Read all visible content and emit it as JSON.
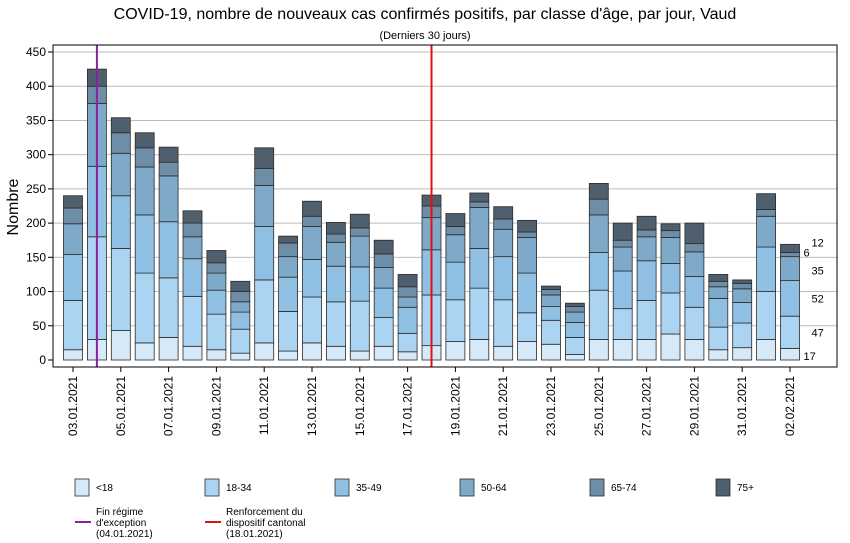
{
  "chart_data": {
    "type": "bar",
    "stacked": true,
    "title": "COVID-19, nombre de nouveaux cas confirmés positifs, par classe d'âge, par jour, Vaud",
    "subtitle": "(Derniers 30 jours)",
    "ylabel": "Nombre",
    "ylim": [
      0,
      450
    ],
    "yticks": [
      0,
      50,
      100,
      150,
      200,
      250,
      300,
      350,
      400,
      450
    ],
    "grid": true,
    "legend_position": "bottom",
    "categories": [
      "03.01.2021",
      "04.01.2021",
      "05.01.2021",
      "06.01.2021",
      "07.01.2021",
      "08.01.2021",
      "09.01.2021",
      "10.01.2021",
      "11.01.2021",
      "12.01.2021",
      "13.01.2021",
      "14.01.2021",
      "15.01.2021",
      "16.01.2021",
      "17.01.2021",
      "18.01.2021",
      "19.01.2021",
      "20.01.2021",
      "21.01.2021",
      "22.01.2021",
      "23.01.2021",
      "24.01.2021",
      "25.01.2021",
      "26.01.2021",
      "27.01.2021",
      "28.01.2021",
      "29.01.2021",
      "30.01.2021",
      "31.01.2021",
      "01.02.2021",
      "02.02.2021"
    ],
    "xtick_labels": [
      "03.01.2021",
      "05.01.2021",
      "07.01.2021",
      "09.01.2021",
      "11.01.2021",
      "13.01.2021",
      "15.01.2021",
      "17.01.2021",
      "19.01.2021",
      "21.01.2021",
      "23.01.2021",
      "25.01.2021",
      "27.01.2021",
      "29.01.2021",
      "31.01.2021",
      "02.02.2021"
    ],
    "series": [
      {
        "name": "<18",
        "color": "#d6e9f8",
        "values": [
          15,
          30,
          43,
          25,
          33,
          20,
          15,
          10,
          25,
          13,
          25,
          20,
          13,
          20,
          12,
          21,
          27,
          30,
          20,
          27,
          23,
          8,
          30,
          30,
          30,
          38,
          30,
          15,
          18,
          30,
          17
        ]
      },
      {
        "name": "18-34",
        "color": "#abd3f2",
        "values": [
          72,
          150,
          120,
          102,
          87,
          73,
          52,
          35,
          92,
          58,
          67,
          65,
          73,
          42,
          27,
          74,
          61,
          75,
          68,
          42,
          35,
          25,
          72,
          45,
          57,
          60,
          47,
          33,
          36,
          70,
          47
        ]
      },
      {
        "name": "35-49",
        "color": "#8fc0e4",
        "values": [
          67,
          103,
          77,
          85,
          82,
          55,
          35,
          25,
          78,
          50,
          55,
          52,
          50,
          43,
          38,
          66,
          55,
          58,
          63,
          58,
          20,
          22,
          55,
          55,
          58,
          43,
          45,
          42,
          30,
          65,
          52
        ]
      },
      {
        "name": "50-64",
        "color": "#7ea9c9",
        "values": [
          45,
          92,
          62,
          70,
          67,
          32,
          25,
          15,
          60,
          30,
          48,
          35,
          45,
          30,
          15,
          47,
          40,
          60,
          40,
          52,
          17,
          15,
          55,
          35,
          35,
          38,
          36,
          17,
          20,
          45,
          35
        ]
      },
      {
        "name": "65-74",
        "color": "#6e8ea8",
        "values": [
          23,
          25,
          30,
          28,
          20,
          20,
          15,
          15,
          25,
          20,
          15,
          12,
          12,
          20,
          15,
          17,
          12,
          8,
          15,
          8,
          8,
          8,
          23,
          10,
          10,
          10,
          12,
          8,
          8,
          10,
          6
        ]
      },
      {
        "name": "75+",
        "color": "#4f5f6d",
        "values": [
          18,
          25,
          22,
          22,
          22,
          18,
          18,
          15,
          30,
          10,
          22,
          17,
          20,
          20,
          18,
          16,
          19,
          13,
          18,
          17,
          5,
          5,
          23,
          25,
          20,
          10,
          30,
          10,
          5,
          23,
          12
        ]
      }
    ],
    "bar_labels": [
      {
        "series": "<18",
        "category": "02.02.2021",
        "text": "17"
      },
      {
        "series": "18-34",
        "category": "02.02.2021",
        "text": "47"
      },
      {
        "series": "35-49",
        "category": "02.02.2021",
        "text": "52"
      },
      {
        "series": "50-64",
        "category": "02.02.2021",
        "text": "35"
      },
      {
        "series": "65-74",
        "category": "02.02.2021",
        "text": "6"
      },
      {
        "series": "75+",
        "category": "02.02.2021",
        "text": "12"
      }
    ],
    "vlines": [
      {
        "x": "04.01.2021",
        "color": "#8a1fa0",
        "label_lines": [
          "Fin régime",
          "d'exception",
          "(04.01.2021)"
        ]
      },
      {
        "x": "18.01.2021",
        "color": "#e01010",
        "label_lines": [
          "Renforcement du",
          "dispositif cantonal",
          "(18.01.2021)"
        ]
      }
    ]
  }
}
